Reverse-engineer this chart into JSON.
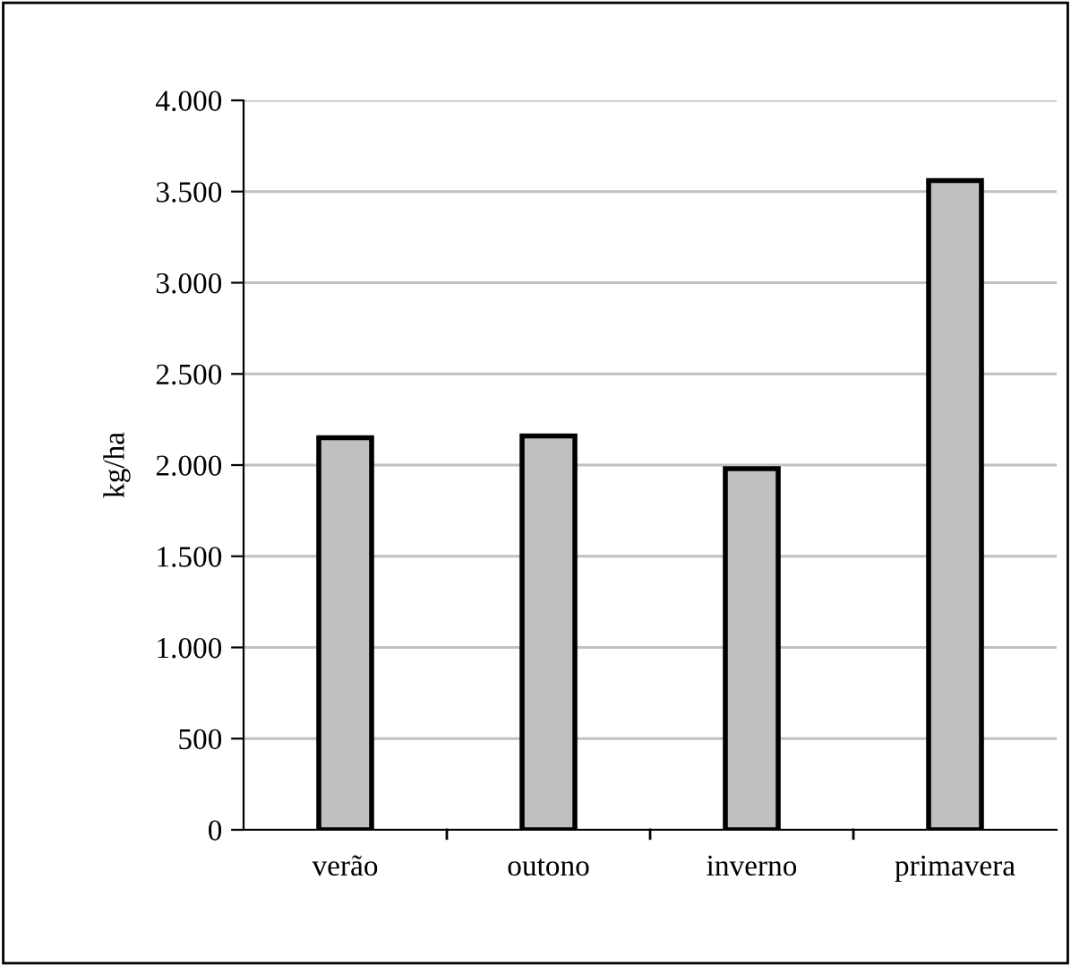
{
  "chart_data": {
    "type": "bar",
    "ylabel": "kg/ha",
    "categories": [
      "verão",
      "outono",
      "inverno",
      "primavera"
    ],
    "values": [
      2150,
      2160,
      1980,
      3560
    ],
    "color": "#c0c0c0",
    "ylim": [
      0,
      4000
    ],
    "yticks": [
      {
        "value": 0,
        "label": "0"
      },
      {
        "value": 500,
        "label": "500"
      },
      {
        "value": 1000,
        "label": "1.000"
      },
      {
        "value": 1500,
        "label": "1.500"
      },
      {
        "value": 2000,
        "label": "2.000"
      },
      {
        "value": 2500,
        "label": "2.500"
      },
      {
        "value": 3000,
        "label": "3.000"
      },
      {
        "value": 3500,
        "label": "3.500"
      },
      {
        "value": 4000,
        "label": "4.000"
      }
    ],
    "grid": "y",
    "legend": false
  }
}
